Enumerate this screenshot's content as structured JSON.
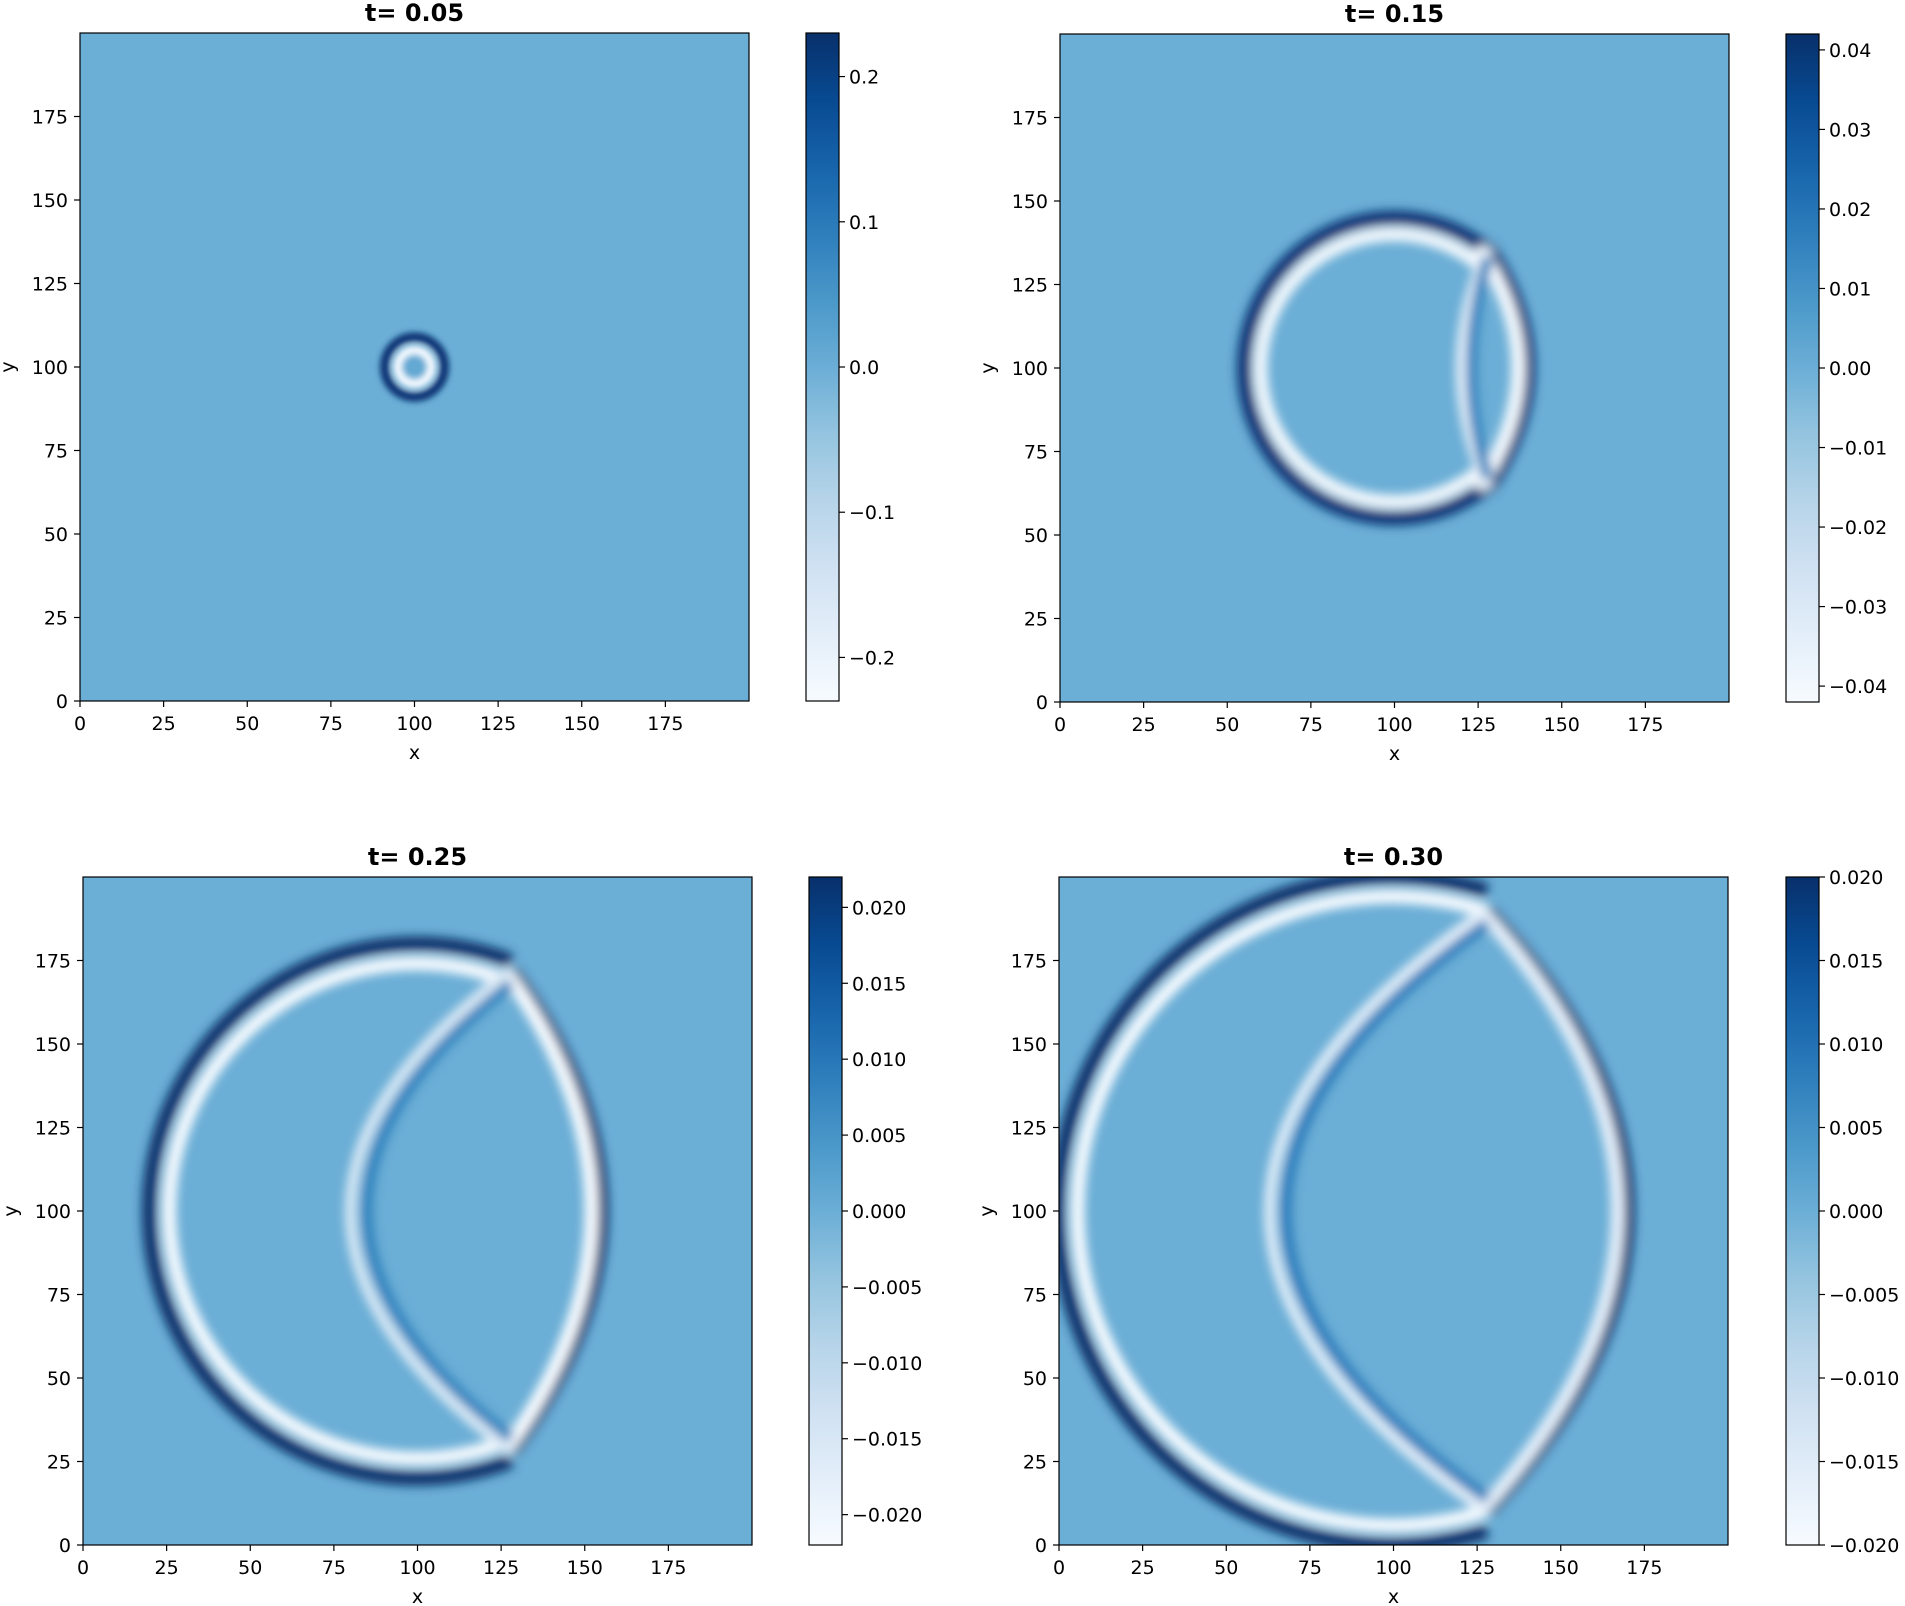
{
  "chart_data": [
    {
      "type": "heatmap",
      "title": "t= 0.05",
      "xlabel": "x",
      "ylabel": "y",
      "xlim": [
        0,
        200
      ],
      "ylim": [
        0,
        200
      ],
      "xticks": [
        0,
        25,
        50,
        75,
        100,
        125,
        150,
        175
      ],
      "yticks": [
        0,
        25,
        50,
        75,
        100,
        125,
        150,
        175
      ],
      "colormap": "Blues",
      "colorbar": {
        "min": -0.23,
        "max": 0.23,
        "ticks": [
          {
            "value": 0.2,
            "label": "0.2"
          },
          {
            "value": 0.1,
            "label": "0.1"
          },
          {
            "value": 0.0,
            "label": "0.0"
          },
          {
            "value": -0.1,
            "label": "−0.1"
          },
          {
            "value": -0.2,
            "label": "−0.2"
          }
        ]
      },
      "background_value": 0.0,
      "rings": [
        {
          "type": "circle",
          "cx": 100,
          "cy": 100,
          "r": 9,
          "value": 0.22
        },
        {
          "type": "circle",
          "cx": 100,
          "cy": 100,
          "r": 5,
          "value": -0.22
        }
      ]
    },
    {
      "type": "heatmap",
      "title": "t= 0.15",
      "xlabel": "x",
      "ylabel": "y",
      "xlim": [
        0,
        200
      ],
      "ylim": [
        0,
        200
      ],
      "xticks": [
        0,
        25,
        50,
        75,
        100,
        125,
        150,
        175
      ],
      "yticks": [
        0,
        25,
        50,
        75,
        100,
        125,
        150,
        175
      ],
      "colormap": "Blues",
      "colorbar": {
        "min": -0.042,
        "max": 0.042,
        "ticks": [
          {
            "value": 0.04,
            "label": "0.04"
          },
          {
            "value": 0.03,
            "label": "0.03"
          },
          {
            "value": 0.02,
            "label": "0.02"
          },
          {
            "value": 0.01,
            "label": "0.01"
          },
          {
            "value": 0.0,
            "label": "0.00"
          },
          {
            "value": -0.01,
            "label": "−0.01"
          },
          {
            "value": -0.02,
            "label": "−0.02"
          },
          {
            "value": -0.03,
            "label": "−0.03"
          },
          {
            "value": -0.04,
            "label": "−0.04"
          }
        ]
      },
      "background_value": 0.0,
      "rings": [
        {
          "type": "arc",
          "cx": 100,
          "cy": 100,
          "r": 45,
          "value": 0.04
        },
        {
          "type": "arc",
          "cx": 100,
          "cy": 100,
          "r": 40,
          "value": -0.04
        },
        {
          "type": "lens",
          "x_front": 140,
          "x_chord": 128,
          "y_half": 36,
          "value": 0.04
        },
        {
          "type": "lens",
          "x_front": 137,
          "x_chord": 125,
          "y_half": 36,
          "value": -0.04
        },
        {
          "type": "inner_arc",
          "x_left": 120,
          "x_chord": 128,
          "y_half": 36,
          "value": -0.035
        },
        {
          "type": "inner_arc",
          "x_left": 123,
          "x_chord": 128,
          "y_half": 33,
          "value": 0.015
        }
      ]
    },
    {
      "type": "heatmap",
      "title": "t= 0.25",
      "xlabel": "x",
      "ylabel": "y",
      "xlim": [
        0,
        200
      ],
      "ylim": [
        0,
        200
      ],
      "xticks": [
        0,
        25,
        50,
        75,
        100,
        125,
        150,
        175
      ],
      "yticks": [
        0,
        25,
        50,
        75,
        100,
        125,
        150,
        175
      ],
      "colormap": "Blues",
      "colorbar": {
        "min": -0.022,
        "max": 0.022,
        "ticks": [
          {
            "value": 0.02,
            "label": "0.020"
          },
          {
            "value": 0.015,
            "label": "0.015"
          },
          {
            "value": 0.01,
            "label": "0.010"
          },
          {
            "value": 0.005,
            "label": "0.005"
          },
          {
            "value": 0.0,
            "label": "0.000"
          },
          {
            "value": -0.005,
            "label": "−0.005"
          },
          {
            "value": -0.01,
            "label": "−0.010"
          },
          {
            "value": -0.015,
            "label": "−0.015"
          },
          {
            "value": -0.02,
            "label": "−0.020"
          }
        ]
      },
      "background_value": 0.0,
      "rings": [
        {
          "type": "arc",
          "cx": 100,
          "cy": 100,
          "r": 80,
          "value": 0.022
        },
        {
          "type": "arc",
          "cx": 100,
          "cy": 100,
          "r": 74,
          "value": -0.022
        },
        {
          "type": "lens",
          "x_front": 155,
          "x_chord": 128,
          "y_half": 72,
          "value": 0.022
        },
        {
          "type": "lens",
          "x_front": 152,
          "x_chord": 126,
          "y_half": 72,
          "value": -0.022
        },
        {
          "type": "inner_arc",
          "x_left": 80,
          "x_chord": 128,
          "y_half": 72,
          "value": -0.016
        },
        {
          "type": "inner_arc",
          "x_left": 85,
          "x_chord": 128,
          "y_half": 68,
          "value": 0.008
        }
      ]
    },
    {
      "type": "heatmap",
      "title": "t= 0.30",
      "xlabel": "x",
      "ylabel": "y",
      "xlim": [
        0,
        200
      ],
      "ylim": [
        0,
        200
      ],
      "xticks": [
        0,
        25,
        50,
        75,
        100,
        125,
        150,
        175
      ],
      "yticks": [
        0,
        25,
        50,
        75,
        100,
        125,
        150,
        175
      ],
      "colormap": "Blues",
      "colorbar": {
        "min": -0.02,
        "max": 0.02,
        "ticks": [
          {
            "value": 0.02,
            "label": "0.020"
          },
          {
            "value": 0.015,
            "label": "0.015"
          },
          {
            "value": 0.01,
            "label": "0.010"
          },
          {
            "value": 0.005,
            "label": "0.005"
          },
          {
            "value": 0.0,
            "label": "0.000"
          },
          {
            "value": -0.005,
            "label": "−0.005"
          },
          {
            "value": -0.01,
            "label": "−0.010"
          },
          {
            "value": -0.015,
            "label": "−0.015"
          },
          {
            "value": -0.02,
            "label": "−0.020"
          }
        ]
      },
      "background_value": 0.0,
      "rings": [
        {
          "type": "arc",
          "cx": 100,
          "cy": 100,
          "r": 100,
          "value": 0.02
        },
        {
          "type": "arc",
          "cx": 100,
          "cy": 100,
          "r": 94,
          "value": -0.02
        },
        {
          "type": "lens",
          "x_front": 170,
          "x_chord": 128,
          "y_half": 90,
          "value": 0.02
        },
        {
          "type": "lens",
          "x_front": 167,
          "x_chord": 126,
          "y_half": 90,
          "value": -0.016
        },
        {
          "type": "inner_arc",
          "x_left": 63,
          "x_chord": 128,
          "y_half": 90,
          "value": -0.016
        },
        {
          "type": "inner_arc",
          "x_left": 68,
          "x_chord": 128,
          "y_half": 86,
          "value": 0.008
        }
      ]
    }
  ]
}
